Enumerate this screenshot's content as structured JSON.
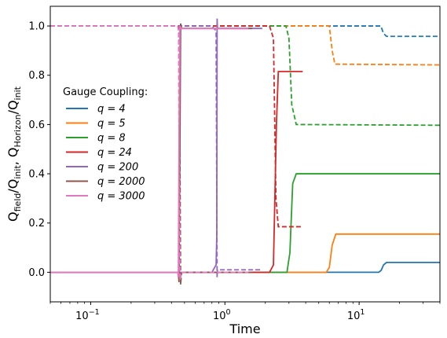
{
  "chart_data": {
    "type": "line",
    "xscale": "log",
    "xlim": [
      0.05,
      40
    ],
    "ylim": [
      -0.12,
      1.08
    ],
    "xlabel": "Time",
    "ylabel": "Q_field/Q_init, Q_Horizon/Q_init",
    "ylabel_parts": {
      "q1": "Q",
      "s1": "field",
      "mid": "/Q",
      "s2": "init",
      "sep": ", Q",
      "s3": "Horizon",
      "mid2": "/Q",
      "s4": "init"
    },
    "x_ticks": [
      {
        "value": 0.1,
        "base": "10",
        "exp": "−1"
      },
      {
        "value": 1,
        "base": "10",
        "exp": "0"
      },
      {
        "value": 10,
        "base": "10",
        "exp": "1"
      }
    ],
    "y_ticks": [
      0.0,
      0.2,
      0.4,
      0.6,
      0.8,
      1.0
    ],
    "y_tick_labels": [
      "0.0",
      "0.2",
      "0.4",
      "0.6",
      "0.8",
      "1.0"
    ],
    "legend": {
      "title": "Gauge Coupling:",
      "placement": "center-left",
      "entries": [
        {
          "text": "q = 4"
        },
        {
          "text": "q = 5"
        },
        {
          "text": "q = 8"
        },
        {
          "text": "q = 24"
        },
        {
          "text": "q = 200"
        },
        {
          "text": "q = 2000"
        },
        {
          "text": "q = 3000"
        }
      ]
    },
    "series": [
      {
        "name": "q = 4",
        "color": "#1f77b4",
        "field": [
          [
            0.05,
            0.0
          ],
          [
            14,
            0.0
          ],
          [
            14.6,
            0.008
          ],
          [
            15.2,
            0.03
          ],
          [
            16,
            0.04
          ],
          [
            40,
            0.04
          ]
        ],
        "horizon": [
          [
            0.05,
            1.0
          ],
          [
            14.5,
            1.0
          ],
          [
            15.2,
            0.97
          ],
          [
            16,
            0.958
          ],
          [
            40,
            0.958
          ]
        ]
      },
      {
        "name": "q = 5",
        "color": "#ff7f0e",
        "field": [
          [
            0.05,
            0.0
          ],
          [
            5.7,
            0.0
          ],
          [
            6.0,
            0.02
          ],
          [
            6.3,
            0.11
          ],
          [
            6.7,
            0.155
          ],
          [
            40,
            0.155
          ]
        ],
        "horizon": [
          [
            0.05,
            1.0
          ],
          [
            6.0,
            1.0
          ],
          [
            6.3,
            0.9
          ],
          [
            6.6,
            0.845
          ],
          [
            40,
            0.842
          ]
        ]
      },
      {
        "name": "q = 8",
        "color": "#2ca02c",
        "field": [
          [
            0.05,
            0.0
          ],
          [
            2.9,
            0.0
          ],
          [
            3.05,
            0.08
          ],
          [
            3.2,
            0.36
          ],
          [
            3.4,
            0.4
          ],
          [
            40,
            0.4
          ]
        ],
        "horizon": [
          [
            0.05,
            1.0
          ],
          [
            2.85,
            1.0
          ],
          [
            3.0,
            0.95
          ],
          [
            3.15,
            0.68
          ],
          [
            3.4,
            0.6
          ],
          [
            40,
            0.597
          ]
        ]
      },
      {
        "name": "q = 24",
        "color": "#d62728",
        "field": [
          [
            0.05,
            0.0
          ],
          [
            2.15,
            0.0
          ],
          [
            2.3,
            0.03
          ],
          [
            2.42,
            0.6
          ],
          [
            2.5,
            0.815
          ],
          [
            3.8,
            0.815
          ]
        ],
        "horizon": [
          [
            0.05,
            1.0
          ],
          [
            2.15,
            1.0
          ],
          [
            2.3,
            0.95
          ],
          [
            2.4,
            0.3
          ],
          [
            2.5,
            0.185
          ],
          [
            3.8,
            0.185
          ]
        ]
      },
      {
        "name": "q = 200",
        "color": "#9467bd",
        "field": [
          [
            0.05,
            0.0
          ],
          [
            0.8,
            0.0
          ],
          [
            0.86,
            0.03
          ],
          [
            0.87,
            0.15
          ],
          [
            0.875,
            1.03
          ],
          [
            0.88,
            0.99
          ],
          [
            1.9,
            0.99
          ]
        ],
        "horizon": [
          [
            0.05,
            1.0
          ],
          [
            0.8,
            1.0
          ],
          [
            0.86,
            0.98
          ],
          [
            0.87,
            0.3
          ],
          [
            0.875,
            -0.02
          ],
          [
            0.88,
            0.01
          ],
          [
            1.9,
            0.01
          ]
        ]
      },
      {
        "name": "q = 2000",
        "color": "#8c564b",
        "field": [
          [
            0.05,
            0.0
          ],
          [
            0.45,
            0.0
          ],
          [
            0.455,
            -0.04
          ],
          [
            0.462,
            0.5
          ],
          [
            0.468,
            1.01
          ],
          [
            0.475,
            0.99
          ],
          [
            1.6,
            0.99
          ]
        ],
        "horizon": [
          [
            0.05,
            1.0
          ],
          [
            0.45,
            1.0
          ],
          [
            0.457,
            0.99
          ],
          [
            0.462,
            0.5
          ],
          [
            0.468,
            -0.05
          ],
          [
            0.475,
            0.0
          ],
          [
            1.6,
            0.0
          ]
        ]
      },
      {
        "name": "q = 3000",
        "color": "#e377c2",
        "field": [
          [
            0.05,
            0.0
          ],
          [
            0.445,
            0.0
          ],
          [
            0.45,
            -0.02
          ],
          [
            0.456,
            0.6
          ],
          [
            0.462,
            1.0
          ],
          [
            0.47,
            0.99
          ],
          [
            1.5,
            0.99
          ]
        ],
        "horizon": [
          [
            0.05,
            1.0
          ],
          [
            0.445,
            1.0
          ],
          [
            0.452,
            0.98
          ],
          [
            0.456,
            0.4
          ],
          [
            0.462,
            -0.03
          ],
          [
            0.47,
            0.0
          ],
          [
            1.5,
            0.0
          ]
        ]
      }
    ]
  }
}
